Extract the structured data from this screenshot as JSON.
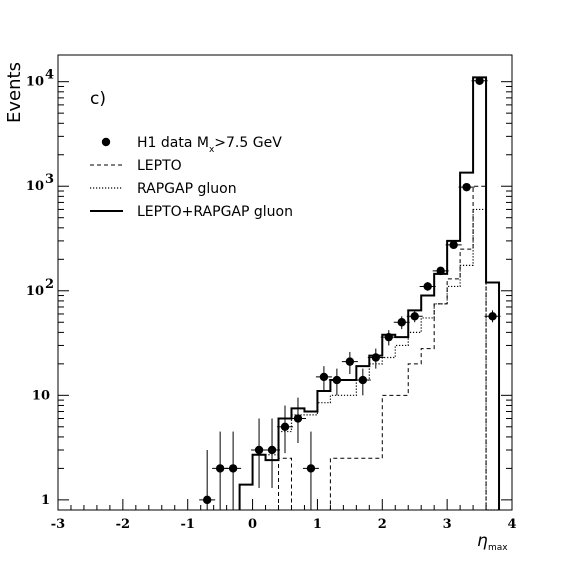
{
  "chart_data": {
    "type": "histogram",
    "panel_label": "c)",
    "ylabel": "Events",
    "xlabel_symbol": "η",
    "xlabel_subscript": "max",
    "y_scale": "log",
    "xlim": [
      -3,
      4
    ],
    "ylim": [
      0.8,
      18000
    ],
    "x_ticks": [
      -3,
      -2,
      -1,
      0,
      1,
      2,
      3,
      4
    ],
    "y_ticks": [
      {
        "value": 1,
        "base": "1",
        "exp": ""
      },
      {
        "value": 10,
        "base": "10",
        "exp": ""
      },
      {
        "value": 100,
        "base": "10",
        "exp": "2"
      },
      {
        "value": 1000,
        "base": "10",
        "exp": "3"
      },
      {
        "value": 10000,
        "base": "10",
        "exp": "4"
      }
    ],
    "bin_edges": [
      -0.2,
      0.0,
      0.2,
      0.4,
      0.6,
      0.8,
      1.0,
      1.2,
      1.4,
      1.6,
      1.8,
      2.0,
      2.2,
      2.4,
      2.6,
      2.8,
      3.0,
      3.2,
      3.4,
      3.6,
      3.8
    ],
    "series": [
      {
        "name": "H1 data M",
        "legend_subscript": "x",
        "legend_suffix": ">7.5 GeV",
        "kind": "points",
        "points": [
          {
            "x": -0.7,
            "y": 1,
            "lo": 0.5,
            "hi": 3.0
          },
          {
            "x": -0.5,
            "y": 2,
            "lo": 0.7,
            "hi": 4.5
          },
          {
            "x": -0.3,
            "y": 2,
            "lo": 0.7,
            "hi": 4.5
          },
          {
            "x": 0.1,
            "y": 3,
            "lo": 1.3,
            "hi": 6.0
          },
          {
            "x": 0.3,
            "y": 3,
            "lo": 1.3,
            "hi": 6.0
          },
          {
            "x": 0.5,
            "y": 5,
            "lo": 2.8,
            "hi": 8.0
          },
          {
            "x": 0.7,
            "y": 6,
            "lo": 3.5,
            "hi": 9.5
          },
          {
            "x": 0.9,
            "y": 2,
            "lo": 0.7,
            "hi": 4.5
          },
          {
            "x": 1.1,
            "y": 15,
            "lo": 11,
            "hi": 19
          },
          {
            "x": 1.3,
            "y": 14,
            "lo": 10,
            "hi": 18
          },
          {
            "x": 1.5,
            "y": 21,
            "lo": 16,
            "hi": 26
          },
          {
            "x": 1.7,
            "y": 14,
            "lo": 10,
            "hi": 18
          },
          {
            "x": 1.9,
            "y": 23,
            "lo": 18,
            "hi": 28
          },
          {
            "x": 2.1,
            "y": 36,
            "lo": 30,
            "hi": 42
          },
          {
            "x": 2.3,
            "y": 50,
            "lo": 43,
            "hi": 57
          },
          {
            "x": 2.5,
            "y": 57,
            "lo": 50,
            "hi": 65
          },
          {
            "x": 2.7,
            "y": 110,
            "lo": 100,
            "hi": 121
          },
          {
            "x": 2.9,
            "y": 155,
            "lo": 143,
            "hi": 168
          },
          {
            "x": 3.1,
            "y": 275,
            "lo": 258,
            "hi": 292
          },
          {
            "x": 3.3,
            "y": 980,
            "lo": 950,
            "hi": 1010
          },
          {
            "x": 3.5,
            "y": 10200,
            "lo": 10100,
            "hi": 10300
          },
          {
            "x": 3.7,
            "y": 57,
            "lo": 50,
            "hi": 65
          }
        ]
      },
      {
        "name": "LEPTO",
        "kind": "hist",
        "style": "dashed",
        "values": [
          0,
          0,
          0,
          2.5,
          0,
          0,
          0,
          2.5,
          2.5,
          2.5,
          2.5,
          10,
          10,
          20,
          28,
          75,
          130,
          250,
          1000,
          0
        ]
      },
      {
        "name": "RAPGAP gluon",
        "kind": "hist",
        "style": "dotted",
        "values": [
          1.4,
          2.7,
          2.7,
          4.5,
          6.5,
          6.5,
          8.5,
          10,
          10,
          14,
          20,
          23,
          30,
          40,
          55,
          75,
          110,
          175,
          600,
          0
        ]
      },
      {
        "name": "LEPTO+RAPGAP gluon",
        "kind": "hist",
        "style": "solid",
        "values": [
          1.4,
          2.7,
          2.4,
          6,
          7.5,
          7,
          11,
          14,
          14,
          19,
          24,
          38,
          36,
          65,
          90,
          145,
          300,
          1350,
          11000,
          120
        ]
      }
    ]
  }
}
